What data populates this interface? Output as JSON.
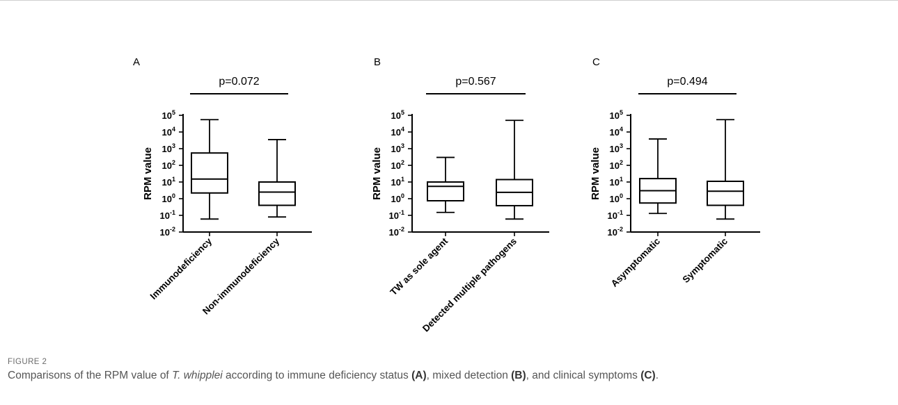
{
  "chart_data": [
    {
      "type": "box",
      "panel_label": "A",
      "ylabel": "RPM value",
      "yscale": "log",
      "ylim": [
        0.01,
        100000
      ],
      "ytick_exponents": [
        "-2",
        "-1",
        "0",
        "1",
        "2",
        "3",
        "4",
        "5"
      ],
      "categories": [
        "Immunodeficiency",
        "Non-immunodeficiency"
      ],
      "boxes": [
        {
          "min": 0.06,
          "q1": 2.2,
          "median": 15,
          "q3": 550,
          "max": 55000
        },
        {
          "min": 0.08,
          "q1": 0.4,
          "median": 2.5,
          "q3": 10,
          "max": 3500
        }
      ],
      "p_value": "p=0.072"
    },
    {
      "type": "box",
      "panel_label": "B",
      "ylabel": "RPM value",
      "yscale": "log",
      "ylim": [
        0.01,
        100000
      ],
      "ytick_exponents": [
        "-2",
        "-1",
        "0",
        "1",
        "2",
        "3",
        "4",
        "5"
      ],
      "categories": [
        "TW as sole agent",
        "Detected multiple pathogens"
      ],
      "boxes": [
        {
          "min": 0.15,
          "q1": 0.75,
          "median": 5.5,
          "q3": 10,
          "max": 300
        },
        {
          "min": 0.06,
          "q1": 0.38,
          "median": 2.4,
          "q3": 14,
          "max": 50000
        }
      ],
      "p_value": "p=0.567"
    },
    {
      "type": "box",
      "panel_label": "C",
      "ylabel": "RPM value",
      "yscale": "log",
      "ylim": [
        0.01,
        100000
      ],
      "ytick_exponents": [
        "-2",
        "-1",
        "0",
        "1",
        "2",
        "3",
        "4",
        "5"
      ],
      "categories": [
        "Asymptomatic",
        "Symptomatic"
      ],
      "boxes": [
        {
          "min": 0.13,
          "q1": 0.55,
          "median": 3.0,
          "q3": 16,
          "max": 3800
        },
        {
          "min": 0.06,
          "q1": 0.4,
          "median": 2.8,
          "q3": 11,
          "max": 55000
        }
      ],
      "p_value": "p=0.494"
    }
  ],
  "figure": {
    "label": "FIGURE 2",
    "caption_pre": "Comparisons of the RPM value of ",
    "caption_species": "T. whipplei",
    "caption_mid1": " according to immune deficiency status ",
    "caption_ref_a": "(A)",
    "caption_mid2": ", mixed detection ",
    "caption_ref_b": "(B)",
    "caption_mid3": ", and clinical symptoms ",
    "caption_ref_c": "(C)",
    "caption_end": "."
  }
}
